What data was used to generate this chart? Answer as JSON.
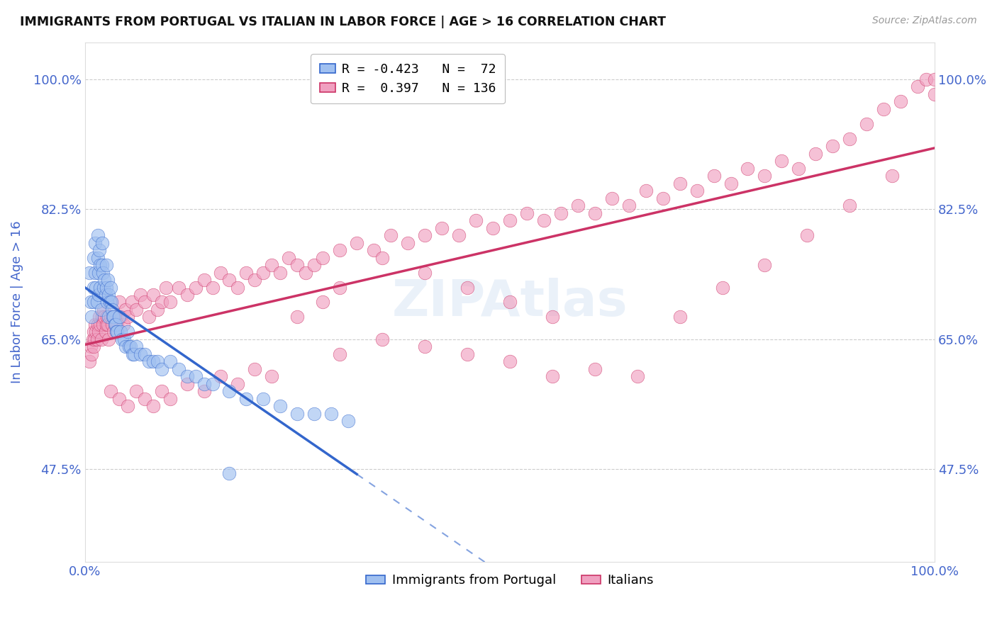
{
  "title": "IMMIGRANTS FROM PORTUGAL VS ITALIAN IN LABOR FORCE | AGE > 16 CORRELATION CHART",
  "source": "Source: ZipAtlas.com",
  "ylabel": "In Labor Force | Age > 16",
  "y_tick_labels": [
    "47.5%",
    "65.0%",
    "82.5%",
    "100.0%"
  ],
  "y_tick_values": [
    0.475,
    0.65,
    0.825,
    1.0
  ],
  "xlim": [
    0.0,
    1.0
  ],
  "ylim": [
    0.35,
    1.05
  ],
  "legend_r1": "R = -0.423",
  "legend_n1": "N =  72",
  "legend_r2": "R =  0.397",
  "legend_n2": "N = 136",
  "legend_label1": "Immigrants from Portugal",
  "legend_label2": "Italians",
  "color_portugal": "#a0c0f0",
  "color_italian": "#f0a0c0",
  "color_line_portugal": "#3366cc",
  "color_line_italian": "#cc3366",
  "background_color": "#ffffff",
  "grid_color": "#cccccc",
  "title_color": "#111111",
  "tick_label_color": "#4466cc",
  "portugal_x": [
    0.005,
    0.007,
    0.008,
    0.01,
    0.01,
    0.01,
    0.012,
    0.012,
    0.013,
    0.014,
    0.015,
    0.015,
    0.016,
    0.016,
    0.017,
    0.018,
    0.018,
    0.019,
    0.02,
    0.02,
    0.021,
    0.022,
    0.023,
    0.024,
    0.025,
    0.025,
    0.026,
    0.027,
    0.028,
    0.028,
    0.029,
    0.03,
    0.031,
    0.032,
    0.033,
    0.034,
    0.035,
    0.036,
    0.037,
    0.038,
    0.04,
    0.042,
    0.044,
    0.046,
    0.048,
    0.05,
    0.052,
    0.054,
    0.056,
    0.058,
    0.06,
    0.065,
    0.07,
    0.075,
    0.08,
    0.085,
    0.09,
    0.1,
    0.11,
    0.12,
    0.13,
    0.14,
    0.15,
    0.17,
    0.19,
    0.21,
    0.23,
    0.25,
    0.27,
    0.29,
    0.31,
    0.17
  ],
  "portugal_y": [
    0.74,
    0.7,
    0.68,
    0.76,
    0.72,
    0.7,
    0.78,
    0.74,
    0.72,
    0.7,
    0.79,
    0.76,
    0.74,
    0.71,
    0.77,
    0.75,
    0.72,
    0.69,
    0.78,
    0.75,
    0.74,
    0.72,
    0.73,
    0.71,
    0.75,
    0.72,
    0.7,
    0.73,
    0.71,
    0.68,
    0.7,
    0.72,
    0.7,
    0.69,
    0.68,
    0.68,
    0.67,
    0.67,
    0.66,
    0.66,
    0.68,
    0.66,
    0.65,
    0.65,
    0.64,
    0.66,
    0.64,
    0.64,
    0.63,
    0.63,
    0.64,
    0.63,
    0.63,
    0.62,
    0.62,
    0.62,
    0.61,
    0.62,
    0.61,
    0.6,
    0.6,
    0.59,
    0.59,
    0.58,
    0.57,
    0.57,
    0.56,
    0.55,
    0.55,
    0.55,
    0.54,
    0.47
  ],
  "italian_x": [
    0.005,
    0.007,
    0.008,
    0.009,
    0.01,
    0.01,
    0.011,
    0.012,
    0.013,
    0.014,
    0.015,
    0.016,
    0.017,
    0.018,
    0.019,
    0.02,
    0.021,
    0.022,
    0.023,
    0.024,
    0.025,
    0.026,
    0.027,
    0.028,
    0.03,
    0.032,
    0.034,
    0.036,
    0.038,
    0.04,
    0.042,
    0.045,
    0.048,
    0.05,
    0.055,
    0.06,
    0.065,
    0.07,
    0.075,
    0.08,
    0.085,
    0.09,
    0.095,
    0.1,
    0.11,
    0.12,
    0.13,
    0.14,
    0.15,
    0.16,
    0.17,
    0.18,
    0.19,
    0.2,
    0.21,
    0.22,
    0.23,
    0.24,
    0.25,
    0.26,
    0.27,
    0.28,
    0.3,
    0.32,
    0.34,
    0.36,
    0.38,
    0.4,
    0.42,
    0.44,
    0.46,
    0.48,
    0.5,
    0.52,
    0.54,
    0.56,
    0.58,
    0.6,
    0.62,
    0.64,
    0.66,
    0.68,
    0.7,
    0.72,
    0.74,
    0.76,
    0.78,
    0.8,
    0.82,
    0.84,
    0.86,
    0.88,
    0.9,
    0.92,
    0.94,
    0.96,
    0.98,
    0.99,
    1.0,
    1.0,
    0.3,
    0.35,
    0.4,
    0.45,
    0.5,
    0.55,
    0.6,
    0.65,
    0.7,
    0.75,
    0.8,
    0.85,
    0.9,
    0.95,
    0.03,
    0.04,
    0.05,
    0.06,
    0.07,
    0.08,
    0.09,
    0.1,
    0.12,
    0.14,
    0.16,
    0.18,
    0.2,
    0.22,
    0.25,
    0.28,
    0.3,
    0.35,
    0.4,
    0.45,
    0.5,
    0.55
  ],
  "italian_y": [
    0.62,
    0.64,
    0.63,
    0.65,
    0.66,
    0.64,
    0.65,
    0.67,
    0.66,
    0.65,
    0.67,
    0.66,
    0.68,
    0.67,
    0.65,
    0.68,
    0.67,
    0.69,
    0.68,
    0.66,
    0.67,
    0.68,
    0.67,
    0.65,
    0.68,
    0.67,
    0.66,
    0.68,
    0.67,
    0.7,
    0.68,
    0.67,
    0.69,
    0.68,
    0.7,
    0.69,
    0.71,
    0.7,
    0.68,
    0.71,
    0.69,
    0.7,
    0.72,
    0.7,
    0.72,
    0.71,
    0.72,
    0.73,
    0.72,
    0.74,
    0.73,
    0.72,
    0.74,
    0.73,
    0.74,
    0.75,
    0.74,
    0.76,
    0.75,
    0.74,
    0.75,
    0.76,
    0.77,
    0.78,
    0.77,
    0.79,
    0.78,
    0.79,
    0.8,
    0.79,
    0.81,
    0.8,
    0.81,
    0.82,
    0.81,
    0.82,
    0.83,
    0.82,
    0.84,
    0.83,
    0.85,
    0.84,
    0.86,
    0.85,
    0.87,
    0.86,
    0.88,
    0.87,
    0.89,
    0.88,
    0.9,
    0.91,
    0.92,
    0.94,
    0.96,
    0.97,
    0.99,
    1.0,
    0.98,
    1.0,
    0.63,
    0.65,
    0.64,
    0.63,
    0.62,
    0.6,
    0.61,
    0.6,
    0.68,
    0.72,
    0.75,
    0.79,
    0.83,
    0.87,
    0.58,
    0.57,
    0.56,
    0.58,
    0.57,
    0.56,
    0.58,
    0.57,
    0.59,
    0.58,
    0.6,
    0.59,
    0.61,
    0.6,
    0.68,
    0.7,
    0.72,
    0.76,
    0.74,
    0.72,
    0.7,
    0.68
  ]
}
